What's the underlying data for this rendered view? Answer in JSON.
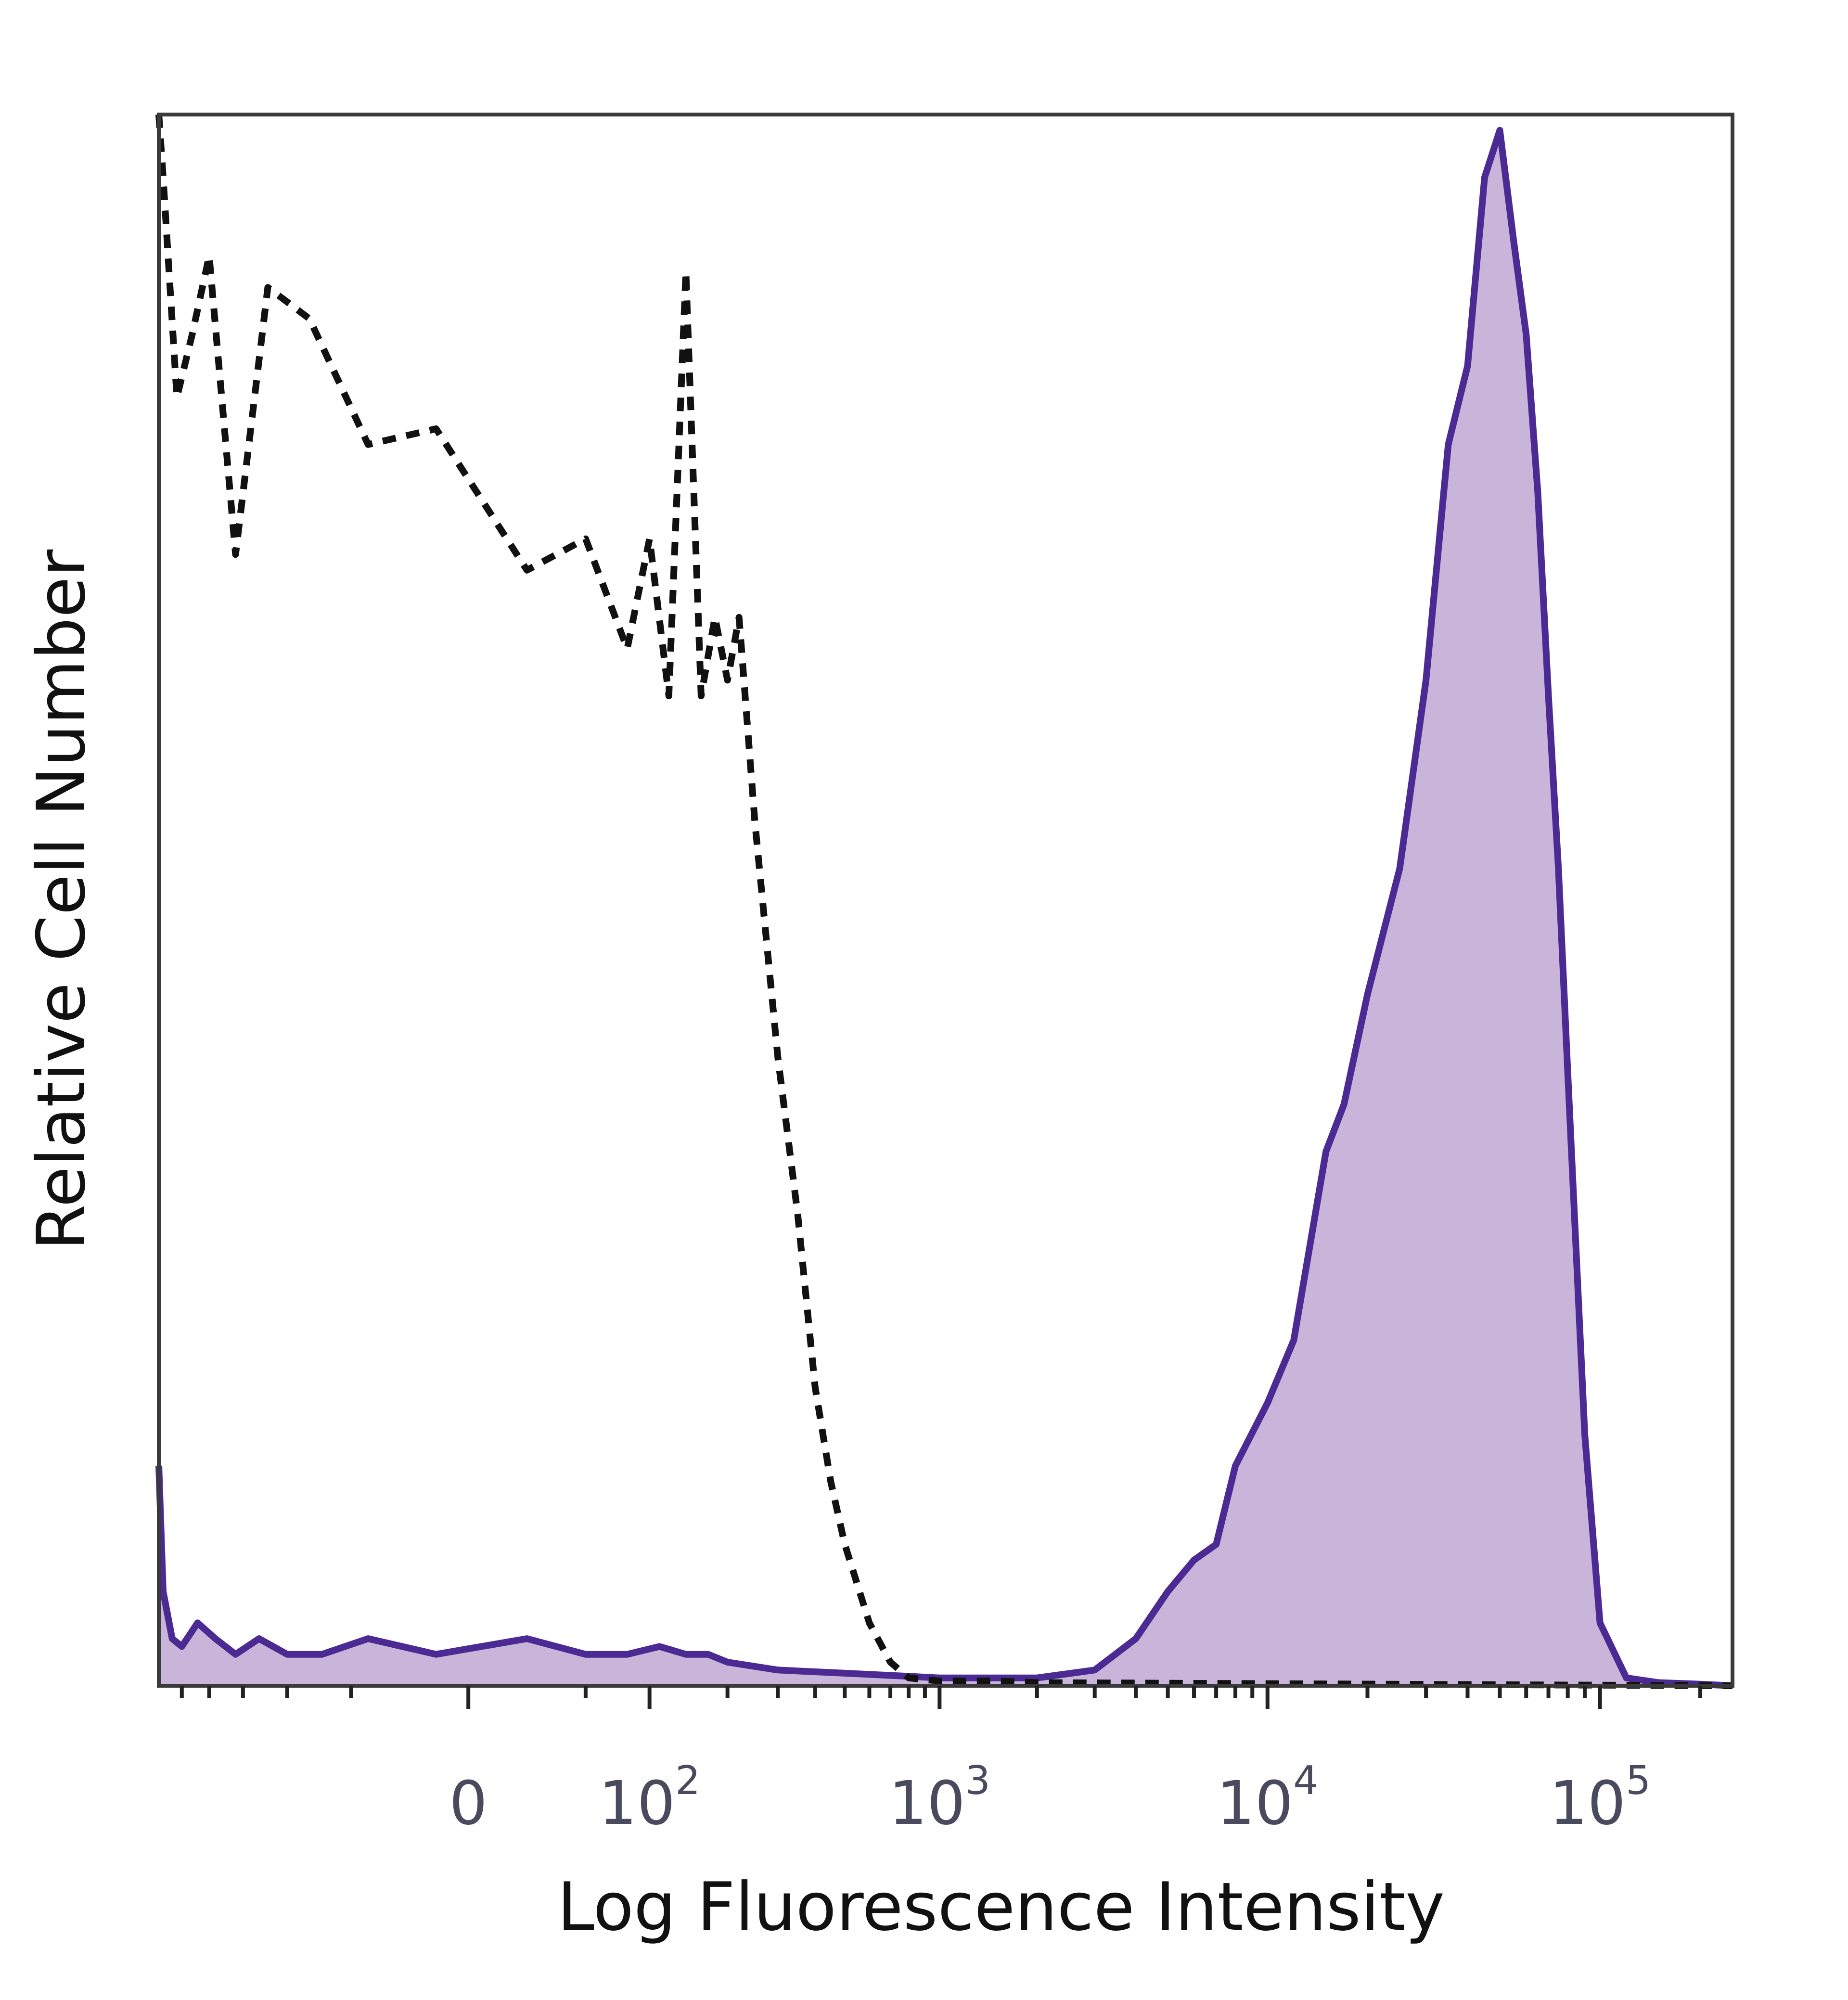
{
  "chart_data": {
    "type": "area",
    "xlabel": "Log Fluorescence Intensity",
    "ylabel": "Relative Cell Number",
    "x_scale": "biexponential",
    "xlim": [
      -300,
      250000
    ],
    "ylim": [
      0,
      100
    ],
    "grid": false,
    "legend": "none",
    "x_ticks": [
      {
        "value": 0,
        "base": "0",
        "exp": ""
      },
      {
        "value": 100,
        "base": "10",
        "exp": "2"
      },
      {
        "value": 1000,
        "base": "10",
        "exp": "3"
      },
      {
        "value": 10000,
        "base": "10",
        "exp": "4"
      },
      {
        "value": 100000,
        "base": "10",
        "exp": "5"
      }
    ],
    "series": [
      {
        "style": "dashed",
        "color": "#111111",
        "x": [
          -300,
          -290,
          -260,
          -230,
          -200,
          -160,
          -120,
          -80,
          -40,
          -10,
          20,
          50,
          80,
          100,
          120,
          140,
          160,
          180,
          200,
          220,
          250,
          300,
          350,
          400,
          450,
          500,
          600,
          700,
          800,
          1000,
          1500,
          2000,
          250000
        ],
        "y": [
          100,
          96,
          82,
          86,
          91,
          72,
          89,
          87,
          79,
          80,
          71,
          73,
          66,
          73,
          63,
          90,
          63,
          68,
          64,
          68,
          55,
          40,
          30,
          19,
          13,
          9,
          4,
          1.5,
          0.5,
          0.3,
          0.3,
          0.2,
          0
        ]
      },
      {
        "style": "filled",
        "color": "#4b2a93",
        "fill": "#c9b4da",
        "x": [
          -300,
          -290,
          -270,
          -250,
          -220,
          -190,
          -160,
          -130,
          -100,
          -70,
          -40,
          -10,
          20,
          50,
          80,
          110,
          140,
          170,
          200,
          300,
          500,
          800,
          1000,
          2000,
          3000,
          4000,
          5000,
          6000,
          7000,
          8000,
          10000,
          12000,
          15000,
          17000,
          20000,
          25000,
          30000,
          35000,
          40000,
          45000,
          50000,
          55000,
          60000,
          65000,
          70000,
          75000,
          80000,
          90000,
          100000,
          120000,
          150000,
          200000,
          250000
        ],
        "y": [
          14,
          6,
          3,
          2.5,
          4,
          3,
          2,
          3,
          2,
          2,
          3,
          2,
          3,
          2,
          2,
          2.5,
          2,
          2,
          1.5,
          1,
          0.8,
          0.6,
          0.5,
          0.5,
          1,
          3,
          6,
          8,
          9,
          14,
          18,
          22,
          34,
          37,
          44,
          52,
          64,
          79,
          84,
          96,
          99,
          92,
          86,
          76,
          63,
          52,
          39,
          16,
          4,
          0.5,
          0.2,
          0.1,
          0
        ]
      }
    ]
  }
}
